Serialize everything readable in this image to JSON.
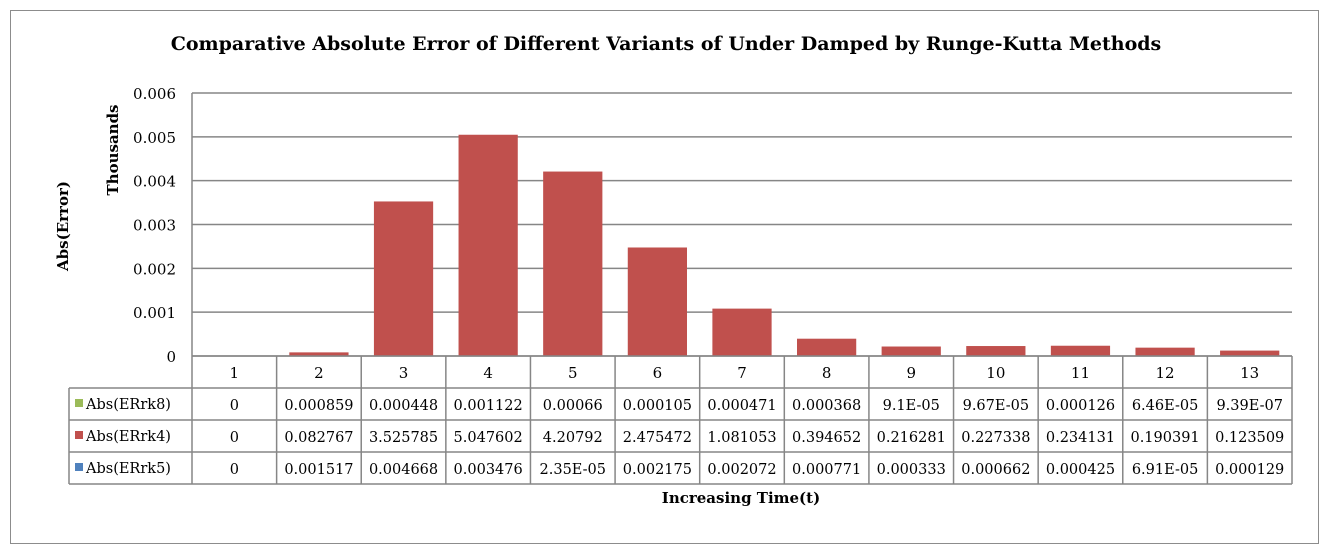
{
  "chart_data": {
    "type": "bar",
    "title": "Comparative Absolute Error of Different Variants of Under Damped by Runge-Kutta Methods",
    "xlabel": "Increasing Time(t)",
    "ylabel": "Abs(Error)",
    "yunit_label": "Thousands",
    "ylim": [
      0,
      0.006
    ],
    "yticks": [
      "0",
      "0.001",
      "0.002",
      "0.003",
      "0.004",
      "0.005",
      "0.006"
    ],
    "grid": true,
    "legend_placement": "data-table",
    "categories": [
      "1",
      "2",
      "3",
      "4",
      "5",
      "6",
      "7",
      "8",
      "9",
      "10",
      "11",
      "12",
      "13"
    ],
    "series": [
      {
        "name": "Abs(ERrk8)",
        "color": "#9bbb59",
        "values": [
          0,
          0.000859,
          0.000448,
          0.001122,
          0.00066,
          0.000105,
          0.000471,
          0.000368,
          9.1e-05,
          9.67e-05,
          0.000126,
          6.46e-05,
          9.39e-07
        ],
        "labels": [
          "0",
          "0.000859",
          "0.000448",
          "0.001122",
          "0.00066",
          "0.000105",
          "0.000471",
          "0.000368",
          "9.1E-05",
          "9.67E-05",
          "0.000126",
          "6.46E-05",
          "9.39E-07"
        ]
      },
      {
        "name": "Abs(ERrk4)",
        "color": "#c0504d",
        "values": [
          0,
          0.082767,
          3.525785,
          5.047602,
          4.20792,
          2.475472,
          1.081053,
          0.394652,
          0.216281,
          0.227338,
          0.234131,
          0.190391,
          0.123509
        ],
        "labels": [
          "0",
          "0.082767",
          "3.525785",
          "5.047602",
          "4.20792",
          "2.475472",
          "1.081053",
          "0.394652",
          "0.216281",
          "0.227338",
          "0.234131",
          "0.190391",
          "0.123509"
        ]
      },
      {
        "name": "Abs(ERrk5)",
        "color": "#4f81bd",
        "values": [
          0,
          0.001517,
          0.004668,
          0.003476,
          2.35e-05,
          0.002175,
          0.002072,
          0.000771,
          0.000333,
          0.000662,
          0.000425,
          6.91e-05,
          0.000129
        ],
        "labels": [
          "0",
          "0.001517",
          "0.004668",
          "0.003476",
          "2.35E-05",
          "0.002175",
          "0.002072",
          "0.000771",
          "0.000333",
          "0.000662",
          "0.000425",
          "6.91E-05",
          "0.000129"
        ]
      }
    ]
  }
}
